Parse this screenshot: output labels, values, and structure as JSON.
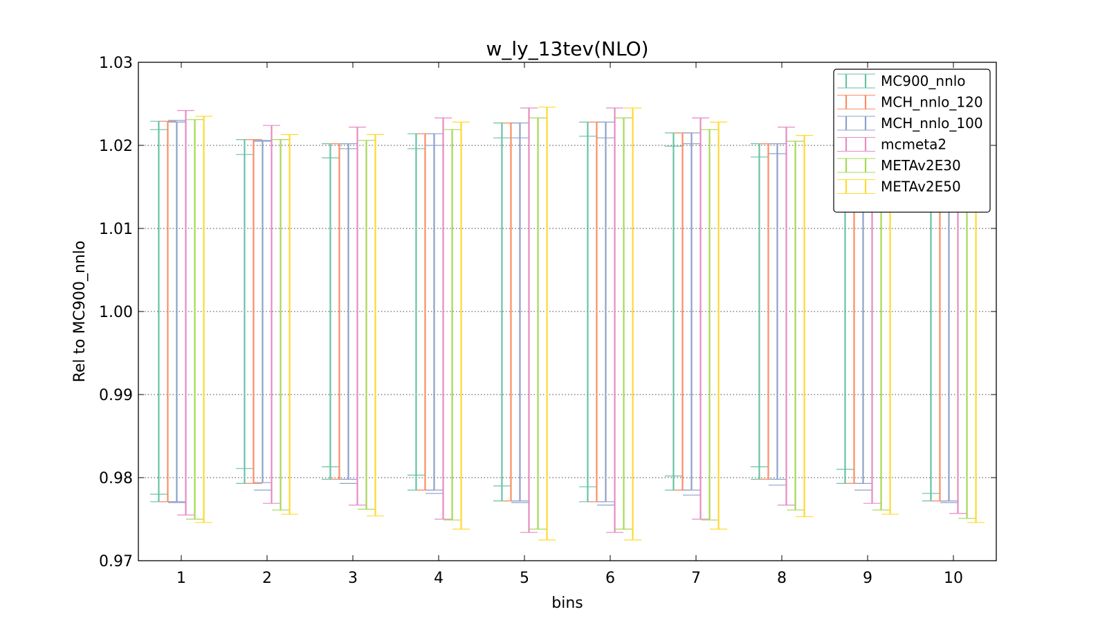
{
  "chart_data": {
    "type": "errorbar",
    "title": "w_ly_13tev(NLO)",
    "xlabel": "bins",
    "ylabel": "Rel to MC900_nnlo",
    "categories": [
      "1",
      "2",
      "3",
      "4",
      "5",
      "6",
      "7",
      "8",
      "9",
      "10"
    ],
    "ylim": [
      0.97,
      1.03
    ],
    "yticks": [
      "0.97",
      "0.98",
      "0.99",
      "1.00",
      "1.01",
      "1.02",
      "1.03"
    ],
    "grid": "horizontal dotted",
    "legend_position": "top-right",
    "series": [
      {
        "name": "MC900_nnlo",
        "color": "#66c2a5",
        "lower": [
          0.9771,
          0.9793,
          0.9798,
          0.9785,
          0.9772,
          0.9771,
          0.9785,
          0.9798,
          0.9793,
          0.9772
        ],
        "upper": [
          1.0229,
          1.0207,
          1.0202,
          1.0214,
          1.0227,
          1.0228,
          1.0215,
          1.0202,
          1.0207,
          1.0228
        ],
        "inner_lower": [
          0.978,
          0.9811,
          0.9813,
          0.9803,
          0.979,
          0.9789,
          0.9802,
          0.9813,
          0.981,
          0.9781
        ],
        "inner_upper": [
          1.0219,
          1.0189,
          1.0185,
          1.0196,
          1.0209,
          1.0211,
          1.0199,
          1.0186,
          1.0189,
          1.022
        ]
      },
      {
        "name": "MCH_nnlo_120",
        "color": "#fc8d62",
        "lower": [
          0.9771,
          0.9793,
          0.9798,
          0.9785,
          0.9772,
          0.9771,
          0.9785,
          0.9798,
          0.9793,
          0.9772
        ],
        "upper": [
          1.0229,
          1.0207,
          1.0202,
          1.0214,
          1.0227,
          1.0228,
          1.0215,
          1.0202,
          1.0207,
          1.0228
        ]
      },
      {
        "name": "MCH_nnlo_100",
        "color": "#8da0cb",
        "lower": [
          0.9771,
          0.9794,
          0.9798,
          0.9785,
          0.9772,
          0.9771,
          0.9785,
          0.9798,
          0.9793,
          0.9772
        ],
        "upper": [
          1.0228,
          1.0206,
          1.0202,
          1.0214,
          1.0227,
          1.0228,
          1.0215,
          1.0202,
          1.0207,
          1.0228
        ],
        "inner_lower": [
          0.977,
          0.9785,
          0.9793,
          0.9781,
          0.977,
          0.9767,
          0.9779,
          0.9791,
          0.9785,
          0.977
        ],
        "inner_upper": [
          1.023,
          1.0205,
          1.0196,
          1.02,
          1.0209,
          1.0209,
          1.0202,
          1.019,
          1.0196,
          1.022
        ]
      },
      {
        "name": "mcmeta2",
        "color": "#e78ac3",
        "lower": [
          0.9755,
          0.9769,
          0.9767,
          0.975,
          0.9734,
          0.9734,
          0.975,
          0.9767,
          0.9769,
          0.9757
        ],
        "upper": [
          1.0242,
          1.0224,
          1.0222,
          1.0233,
          1.0245,
          1.0245,
          1.0233,
          1.0222,
          1.0224,
          1.0242
        ]
      },
      {
        "name": "METAv2E30",
        "color": "#a6d854",
        "lower": [
          0.975,
          0.9761,
          0.9762,
          0.9749,
          0.9738,
          0.9738,
          0.9749,
          0.9761,
          0.9761,
          0.9751
        ],
        "upper": [
          1.0231,
          1.0207,
          1.0206,
          1.0219,
          1.0233,
          1.0233,
          1.0219,
          1.0205,
          1.0205,
          1.023
        ]
      },
      {
        "name": "METAv2E50",
        "color": "#ffd92f",
        "lower": [
          0.9746,
          0.9756,
          0.9754,
          0.9738,
          0.9725,
          0.9725,
          0.9738,
          0.9753,
          0.9756,
          0.9746
        ],
        "upper": [
          1.0235,
          1.0213,
          1.0213,
          1.0228,
          1.0246,
          1.0245,
          1.0228,
          1.0212,
          1.0213,
          1.0235
        ]
      }
    ]
  }
}
